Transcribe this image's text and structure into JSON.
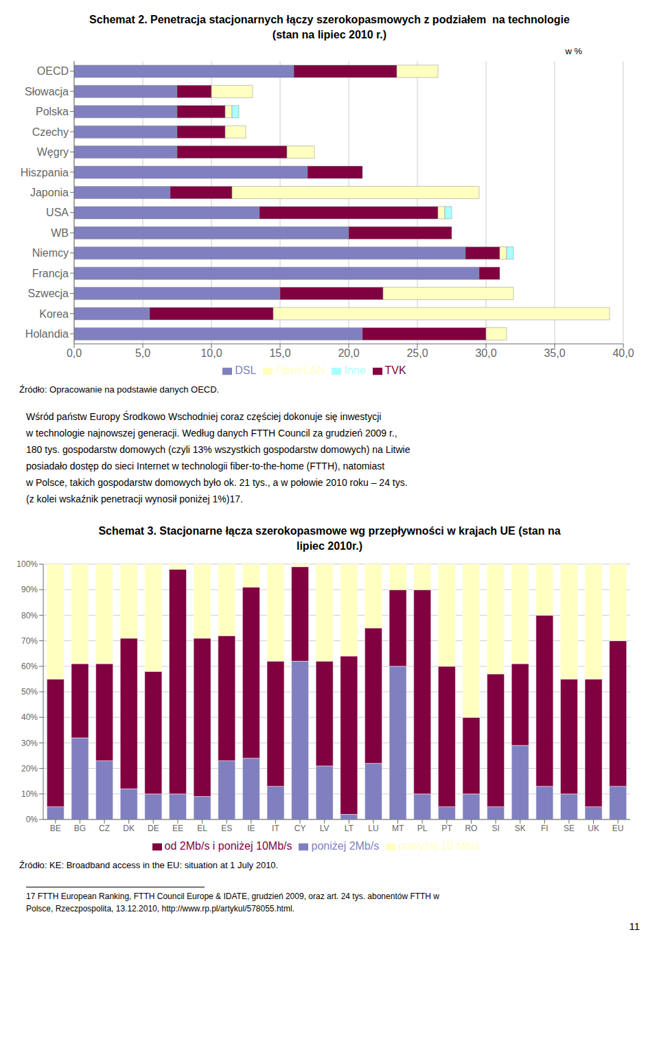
{
  "chart_data": [
    {
      "type": "bar",
      "orientation": "horizontal",
      "stacked": true,
      "title": "Schemat 2. Penetracja stacjonarnych łączy szerokopasmowych z podziałem  na technologie",
      "subtitle": "(stan na lipiec 2010 r.)",
      "xlabel": "w %",
      "categories": [
        "OECD",
        "Słowacja",
        "Polska",
        "Czechy",
        "Węgry",
        "Hiszpania",
        "Japonia",
        "USA",
        "WB",
        "Niemcy",
        "Francja",
        "Szwecja",
        "Korea",
        "Holandia"
      ],
      "series": [
        {
          "name": "DSL",
          "color": "#8080C0",
          "values": [
            16.0,
            7.5,
            7.5,
            7.5,
            7.5,
            17.0,
            7.0,
            13.5,
            20.0,
            28.5,
            29.5,
            15.0,
            5.5,
            21.0
          ]
        },
        {
          "name": "TVK",
          "color": "#800040",
          "values": [
            7.5,
            2.5,
            3.5,
            3.5,
            8.0,
            4.0,
            4.5,
            13.0,
            7.5,
            2.5,
            1.5,
            7.5,
            9.0,
            9.0
          ]
        },
        {
          "name": "Fibre/LAN",
          "color": "#FFFFC0",
          "values": [
            3.0,
            3.0,
            0.5,
            1.5,
            2.0,
            0.0,
            18.0,
            0.5,
            0.0,
            0.5,
            0.0,
            9.5,
            24.5,
            1.5
          ]
        },
        {
          "name": "Inne",
          "color": "#AAFFFF",
          "values": [
            0.0,
            0.0,
            0.5,
            0.0,
            0.0,
            0.0,
            0.0,
            0.5,
            0.0,
            0.5,
            0.0,
            0.0,
            0.0,
            0.0
          ]
        }
      ],
      "xlim": [
        0,
        40
      ],
      "xticks": [
        {
          "value": 0,
          "label": "0,0"
        },
        {
          "value": 5,
          "label": "5,0"
        },
        {
          "value": 10,
          "label": "10,0"
        },
        {
          "value": 15,
          "label": "15,0"
        },
        {
          "value": 20,
          "label": "20,0"
        },
        {
          "value": 25,
          "label": "25,0"
        },
        {
          "value": 30,
          "label": "30,0"
        },
        {
          "value": 35,
          "label": "35,0"
        },
        {
          "value": 40,
          "label": "40,0"
        }
      ],
      "grid": true,
      "legend": "bottom",
      "annotations": [
        "Źródło: Opracowanie na podstawie danych OECD.",
        "Wśród państw Europy Środkowo Wschodniej coraz częściej dokonuje się inwestycji",
        "w technologie najnowszej generacji. Według danych FTTH Council za grudzień 2009 r.,",
        "180 tys. gospodarstw domowych (czyli 13% wszystkich gospodarstw domowych) na Litwie",
        "posiadało dostęp do sieci Internet w technologii fiber-to-the-home (FTTH), natomiast",
        "w Polsce, takich gospodarstw domowych było ok. 21 tys., a w połowie 2010 roku – 24 tys.",
        "(z kolei wskaźnik penetracji wynosił poniżej 1%)17."
      ]
    },
    {
      "type": "bar",
      "stacked": true,
      "title": "Schemat 3. Stacjonarne łącza szerokopasmowe wg przepływności w krajach UE (stan na",
      "subtitle": "lipiec 2010r.)",
      "categories": [
        "BE",
        "BG",
        "CZ",
        "DK",
        "DE",
        "EE",
        "EL",
        "ES",
        "IE",
        "IT",
        "CY",
        "LV",
        "LT",
        "LU",
        "MT",
        "PL",
        "PT",
        "RO",
        "SI",
        "SK",
        "FI",
        "SE",
        "UK",
        "EU"
      ],
      "series": [
        {
          "name": "poniżej 2Mb/s",
          "color": "#8080C0",
          "values": [
            5,
            32,
            23,
            12,
            10,
            10,
            9,
            23,
            24,
            13,
            62,
            21,
            2,
            22,
            60,
            10,
            5,
            10,
            5,
            29,
            13,
            10,
            5,
            13
          ]
        },
        {
          "name": "od 2Mb/s i poniżej 10Mb/s",
          "color": "#800040",
          "values": [
            50,
            29,
            38,
            59,
            48,
            88,
            62,
            49,
            67,
            49,
            37,
            41,
            62,
            53,
            30,
            80,
            55,
            30,
            52,
            32,
            67,
            45,
            50,
            57
          ]
        },
        {
          "name": "powyżej 10 Mb/s",
          "color": "#FFFFC0",
          "values": [
            45,
            39,
            39,
            29,
            42,
            2,
            29,
            28,
            9,
            38,
            1,
            38,
            36,
            25,
            10,
            10,
            40,
            60,
            43,
            39,
            20,
            45,
            45,
            30
          ]
        }
      ],
      "ylim": [
        0,
        100
      ],
      "yticks": [
        {
          "value": 0,
          "label": "0%"
        },
        {
          "value": 10,
          "label": "10%"
        },
        {
          "value": 20,
          "label": "20%"
        },
        {
          "value": 30,
          "label": "30%"
        },
        {
          "value": 40,
          "label": "40%"
        },
        {
          "value": 50,
          "label": "50%"
        },
        {
          "value": 60,
          "label": "60%"
        },
        {
          "value": 70,
          "label": "70%"
        },
        {
          "value": 80,
          "label": "80%"
        },
        {
          "value": 90,
          "label": "90%"
        },
        {
          "value": 100,
          "label": "100%"
        }
      ],
      "grid": true,
      "legend": "bottom",
      "annotations": [
        "Źródło: KE: Broadband access in the EU: situation at 1 July 2010.",
        "17 FTTH European Ranking, FTTH Council Europe & IDATE, grudzień 2009, oraz art. 24 tys. abonentów FTTH w",
        "Polsce, Rzeczpospolita, 13.12.2010, http://www.rp.pl/artykul/578055.html.",
        "11"
      ]
    }
  ]
}
